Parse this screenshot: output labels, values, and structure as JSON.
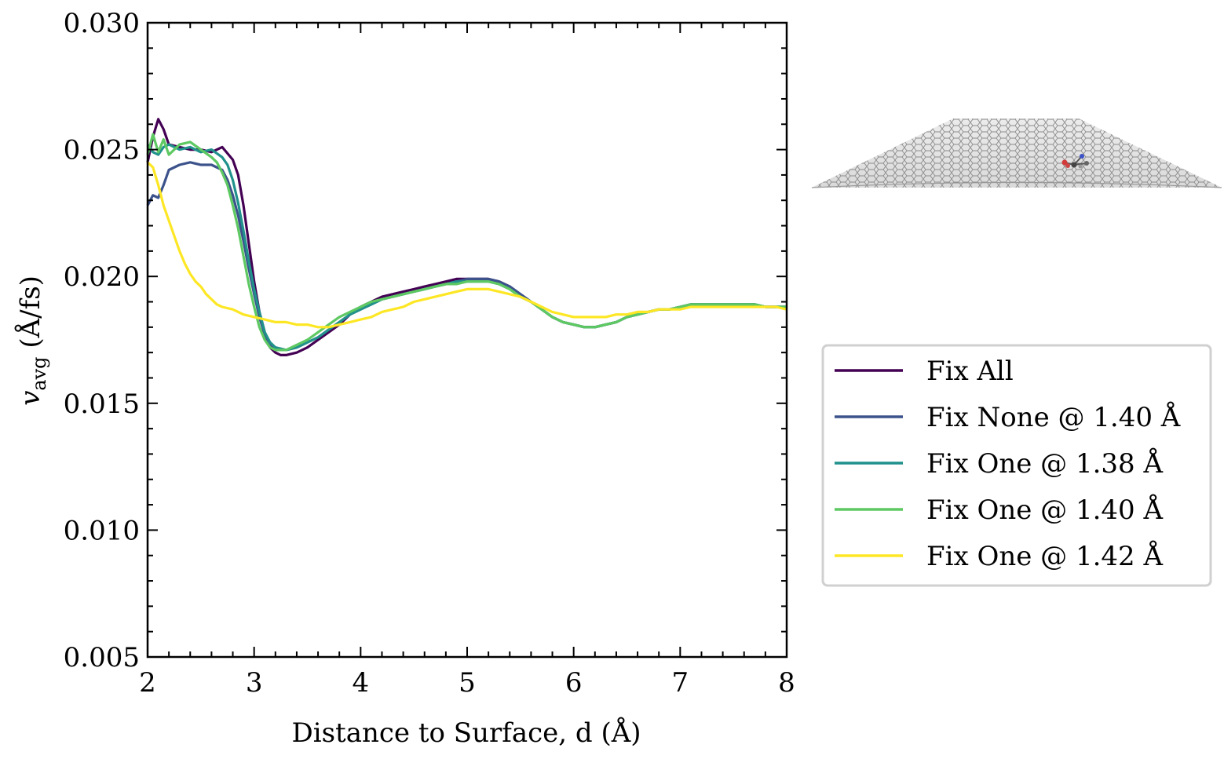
{
  "chart_data": {
    "type": "line",
    "xlabel": "Distance to Surface, d (Å)",
    "ylabel_main": "v",
    "ylabel_sub": "avg",
    "ylabel_unit": " (Å/fs)",
    "xlim": [
      2,
      8
    ],
    "ylim": [
      0.005,
      0.03
    ],
    "xticks": [
      "2",
      "3",
      "4",
      "5",
      "6",
      "7",
      "8"
    ],
    "yticks": [
      "0.005",
      "0.010",
      "0.015",
      "0.020",
      "0.025",
      "0.030"
    ],
    "legend_position": "right",
    "grid": false,
    "inset_image": "graphene-sheet-with-molecule",
    "series": [
      {
        "name": "Fix All",
        "color": "#440154",
        "x": [
          2.0,
          2.05,
          2.1,
          2.15,
          2.2,
          2.3,
          2.4,
          2.5,
          2.6,
          2.7,
          2.8,
          2.85,
          2.9,
          2.95,
          3.0,
          3.05,
          3.1,
          3.15,
          3.2,
          3.25,
          3.3,
          3.4,
          3.5,
          3.6,
          3.7,
          3.8,
          3.9,
          4.0,
          4.1,
          4.2,
          4.3,
          4.4,
          4.5,
          4.6,
          4.7,
          4.8,
          4.9,
          5.0,
          5.1,
          5.2,
          5.3,
          5.4,
          5.5,
          5.6,
          5.7,
          5.8,
          5.9,
          6.0,
          6.1,
          6.2,
          6.3,
          6.4,
          6.5,
          6.6,
          6.7,
          6.8,
          6.9,
          7.0,
          7.1,
          7.2,
          7.3,
          7.4,
          7.5,
          7.6,
          7.7,
          7.8,
          7.9,
          8.0
        ],
        "y": [
          0.0245,
          0.0255,
          0.0262,
          0.0258,
          0.0252,
          0.0251,
          0.025,
          0.025,
          0.0249,
          0.0251,
          0.0246,
          0.024,
          0.0228,
          0.0213,
          0.0198,
          0.0186,
          0.0178,
          0.0172,
          0.017,
          0.0169,
          0.0169,
          0.017,
          0.0172,
          0.0175,
          0.0178,
          0.0181,
          0.0185,
          0.0188,
          0.019,
          0.0192,
          0.0193,
          0.0194,
          0.0195,
          0.0196,
          0.0197,
          0.0198,
          0.0199,
          0.0199,
          0.0199,
          0.0199,
          0.0198,
          0.0196,
          0.0193,
          0.019,
          0.0187,
          0.0184,
          0.0182,
          0.0181,
          0.018,
          0.018,
          0.0181,
          0.0182,
          0.0184,
          0.0185,
          0.0186,
          0.0187,
          0.0187,
          0.0188,
          0.0189,
          0.0189,
          0.0189,
          0.0189,
          0.0189,
          0.0189,
          0.0189,
          0.0188,
          0.0188,
          0.0188
        ]
      },
      {
        "name": "Fix None @ 1.40 Å",
        "color": "#3b528b",
        "x": [
          2.0,
          2.05,
          2.1,
          2.15,
          2.2,
          2.3,
          2.4,
          2.5,
          2.6,
          2.7,
          2.75,
          2.8,
          2.85,
          2.9,
          2.95,
          3.0,
          3.05,
          3.1,
          3.15,
          3.2,
          3.3,
          3.4,
          3.5,
          3.6,
          3.7,
          3.8,
          3.9,
          4.0,
          4.1,
          4.2,
          4.3,
          4.4,
          4.5,
          4.6,
          4.7,
          4.8,
          4.9,
          5.0,
          5.1,
          5.2,
          5.3,
          5.4,
          5.5,
          5.6,
          5.7,
          5.8,
          5.9,
          6.0,
          6.1,
          6.2,
          6.3,
          6.4,
          6.5,
          6.6,
          6.7,
          6.8,
          6.9,
          7.0,
          7.1,
          7.2,
          7.3,
          7.4,
          7.5,
          7.6,
          7.7,
          7.8,
          7.9,
          8.0
        ],
        "y": [
          0.0228,
          0.0232,
          0.0231,
          0.0236,
          0.0242,
          0.0244,
          0.0245,
          0.0244,
          0.0244,
          0.0242,
          0.0238,
          0.0232,
          0.0224,
          0.0214,
          0.0203,
          0.0193,
          0.0184,
          0.0177,
          0.0173,
          0.0172,
          0.0171,
          0.0172,
          0.0174,
          0.0176,
          0.0179,
          0.0182,
          0.0185,
          0.0187,
          0.0189,
          0.0191,
          0.0192,
          0.0193,
          0.0194,
          0.0195,
          0.0196,
          0.0197,
          0.0198,
          0.0199,
          0.0199,
          0.0199,
          0.0198,
          0.0196,
          0.0193,
          0.019,
          0.0187,
          0.0184,
          0.0182,
          0.0181,
          0.018,
          0.018,
          0.0181,
          0.0182,
          0.0184,
          0.0185,
          0.0186,
          0.0187,
          0.0187,
          0.0188,
          0.0189,
          0.0189,
          0.0189,
          0.0189,
          0.0189,
          0.0189,
          0.0189,
          0.0188,
          0.0188,
          0.0188
        ]
      },
      {
        "name": "Fix One @ 1.38 Å",
        "color": "#21918c",
        "x": [
          2.0,
          2.05,
          2.1,
          2.15,
          2.2,
          2.3,
          2.4,
          2.5,
          2.6,
          2.7,
          2.75,
          2.8,
          2.85,
          2.9,
          2.95,
          3.0,
          3.05,
          3.1,
          3.15,
          3.2,
          3.3,
          3.4,
          3.5,
          3.6,
          3.7,
          3.8,
          3.9,
          4.0,
          4.1,
          4.2,
          4.3,
          4.4,
          4.5,
          4.6,
          4.7,
          4.8,
          4.9,
          5.0,
          5.1,
          5.2,
          5.3,
          5.4,
          5.5,
          5.6,
          5.7,
          5.8,
          5.9,
          6.0,
          6.1,
          6.2,
          6.3,
          6.4,
          6.5,
          6.6,
          6.7,
          6.8,
          6.9,
          7.0,
          7.1,
          7.2,
          7.3,
          7.4,
          7.5,
          7.6,
          7.7,
          7.8,
          7.9,
          8.0
        ],
        "y": [
          0.0252,
          0.0249,
          0.0248,
          0.0251,
          0.0252,
          0.025,
          0.0251,
          0.0249,
          0.025,
          0.0247,
          0.0244,
          0.0238,
          0.0229,
          0.0218,
          0.0206,
          0.0195,
          0.0186,
          0.0178,
          0.0174,
          0.0172,
          0.0171,
          0.0172,
          0.0174,
          0.0176,
          0.0179,
          0.0182,
          0.0185,
          0.0187,
          0.0189,
          0.0191,
          0.0192,
          0.0193,
          0.0194,
          0.0195,
          0.0196,
          0.0197,
          0.0198,
          0.0198,
          0.0198,
          0.0198,
          0.0197,
          0.0195,
          0.0192,
          0.019,
          0.0187,
          0.0184,
          0.0182,
          0.0181,
          0.018,
          0.018,
          0.0181,
          0.0182,
          0.0184,
          0.0185,
          0.0186,
          0.0187,
          0.0187,
          0.0188,
          0.0189,
          0.0189,
          0.0189,
          0.0189,
          0.0189,
          0.0189,
          0.0189,
          0.0188,
          0.0188,
          0.0188
        ]
      },
      {
        "name": "Fix One @ 1.40 Å",
        "color": "#5ec962",
        "x": [
          2.0,
          2.05,
          2.1,
          2.15,
          2.2,
          2.3,
          2.4,
          2.5,
          2.6,
          2.65,
          2.7,
          2.75,
          2.8,
          2.85,
          2.9,
          2.95,
          3.0,
          3.05,
          3.1,
          3.15,
          3.2,
          3.3,
          3.4,
          3.5,
          3.6,
          3.7,
          3.8,
          3.9,
          4.0,
          4.1,
          4.2,
          4.3,
          4.4,
          4.5,
          4.6,
          4.7,
          4.8,
          4.9,
          5.0,
          5.1,
          5.2,
          5.3,
          5.4,
          5.5,
          5.6,
          5.7,
          5.8,
          5.9,
          6.0,
          6.1,
          6.2,
          6.3,
          6.4,
          6.5,
          6.6,
          6.7,
          6.8,
          6.9,
          7.0,
          7.1,
          7.2,
          7.3,
          7.4,
          7.5,
          7.6,
          7.7,
          7.8,
          7.9,
          8.0
        ],
        "y": [
          0.0248,
          0.0256,
          0.0249,
          0.0254,
          0.0248,
          0.0252,
          0.0253,
          0.025,
          0.0247,
          0.0245,
          0.0241,
          0.0236,
          0.0228,
          0.0219,
          0.0208,
          0.0197,
          0.0188,
          0.018,
          0.0175,
          0.0172,
          0.0171,
          0.0171,
          0.0173,
          0.0175,
          0.0178,
          0.0181,
          0.0184,
          0.0186,
          0.0188,
          0.019,
          0.0191,
          0.0192,
          0.0193,
          0.0194,
          0.0195,
          0.0196,
          0.0197,
          0.0197,
          0.0198,
          0.0198,
          0.0198,
          0.0197,
          0.0195,
          0.0192,
          0.019,
          0.0187,
          0.0184,
          0.0182,
          0.0181,
          0.018,
          0.018,
          0.0181,
          0.0182,
          0.0184,
          0.0185,
          0.0186,
          0.0187,
          0.0187,
          0.0188,
          0.0189,
          0.0189,
          0.0189,
          0.0189,
          0.0189,
          0.0189,
          0.0189,
          0.0188,
          0.0188,
          0.0188
        ]
      },
      {
        "name": "Fix One @ 1.42 Å",
        "color": "#fde725",
        "x": [
          2.0,
          2.05,
          2.1,
          2.15,
          2.2,
          2.25,
          2.3,
          2.35,
          2.4,
          2.45,
          2.5,
          2.55,
          2.6,
          2.65,
          2.7,
          2.8,
          2.9,
          3.0,
          3.1,
          3.2,
          3.3,
          3.4,
          3.5,
          3.6,
          3.7,
          3.8,
          3.9,
          4.0,
          4.1,
          4.2,
          4.3,
          4.4,
          4.5,
          4.6,
          4.7,
          4.8,
          4.9,
          5.0,
          5.1,
          5.2,
          5.3,
          5.4,
          5.5,
          5.6,
          5.7,
          5.8,
          5.9,
          6.0,
          6.1,
          6.2,
          6.3,
          6.4,
          6.5,
          6.6,
          6.7,
          6.8,
          6.9,
          7.0,
          7.1,
          7.2,
          7.3,
          7.4,
          7.5,
          7.6,
          7.7,
          7.8,
          7.9,
          8.0
        ],
        "y": [
          0.0245,
          0.0243,
          0.0236,
          0.0228,
          0.0222,
          0.0216,
          0.021,
          0.0205,
          0.0201,
          0.0198,
          0.0196,
          0.0193,
          0.0191,
          0.0189,
          0.0188,
          0.0187,
          0.0185,
          0.0184,
          0.0183,
          0.0182,
          0.0182,
          0.0181,
          0.0181,
          0.018,
          0.018,
          0.0181,
          0.0182,
          0.0183,
          0.0184,
          0.0186,
          0.0187,
          0.0188,
          0.019,
          0.0191,
          0.0192,
          0.0193,
          0.0194,
          0.0195,
          0.0195,
          0.0195,
          0.0194,
          0.0193,
          0.0192,
          0.019,
          0.0188,
          0.0186,
          0.0185,
          0.0184,
          0.0184,
          0.0184,
          0.0184,
          0.0185,
          0.0185,
          0.0186,
          0.0186,
          0.0187,
          0.0187,
          0.0187,
          0.0188,
          0.0188,
          0.0188,
          0.0188,
          0.0188,
          0.0188,
          0.0188,
          0.0188,
          0.0188,
          0.0187
        ]
      }
    ]
  }
}
